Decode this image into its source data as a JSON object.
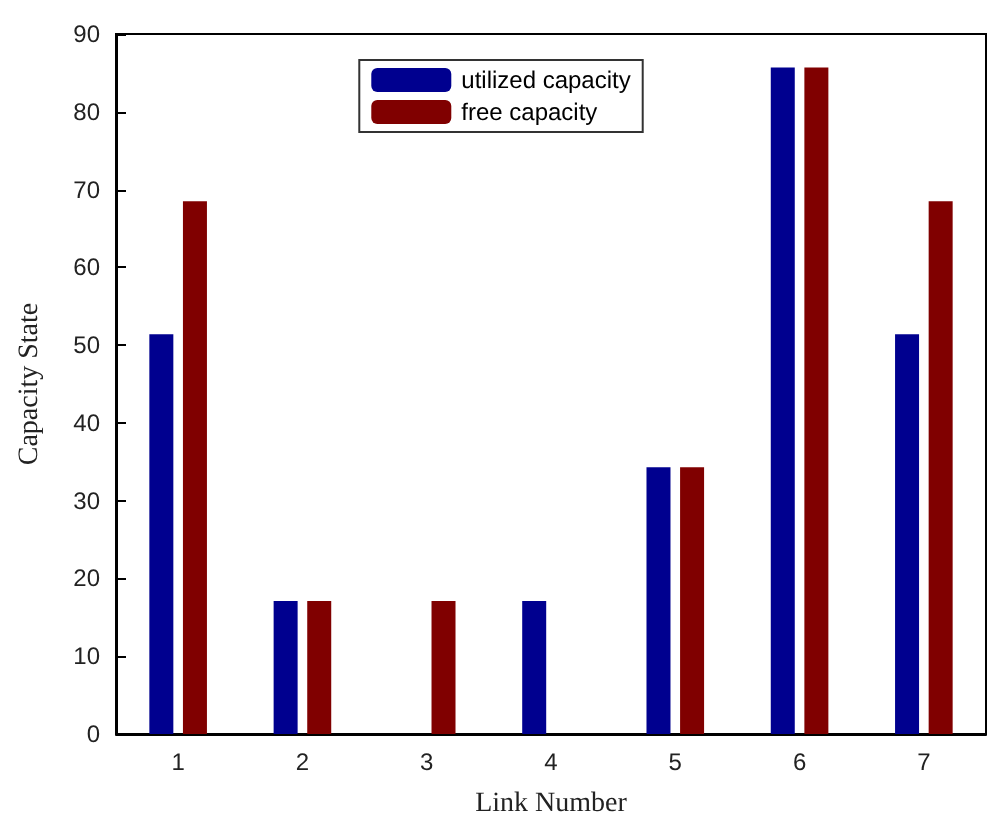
{
  "chart_data": {
    "type": "bar",
    "xlabel": "Link Number",
    "ylabel": "Capacity State",
    "categories": [
      "1",
      "2",
      "3",
      "4",
      "5",
      "6",
      "7"
    ],
    "series": [
      {
        "name": "utilized capacity",
        "color": "#00008f",
        "values": [
          51.4,
          17.1,
          0,
          17.1,
          34.3,
          85.7,
          51.4
        ]
      },
      {
        "name": "free capacity",
        "color": "#800000",
        "values": [
          68.5,
          17.1,
          17.1,
          0,
          34.3,
          85.7,
          68.5
        ]
      }
    ],
    "ylim": [
      0,
      90
    ],
    "yticks": [
      0,
      10,
      20,
      30,
      40,
      50,
      60,
      70,
      80,
      90
    ],
    "grid": false,
    "legend": "top"
  }
}
